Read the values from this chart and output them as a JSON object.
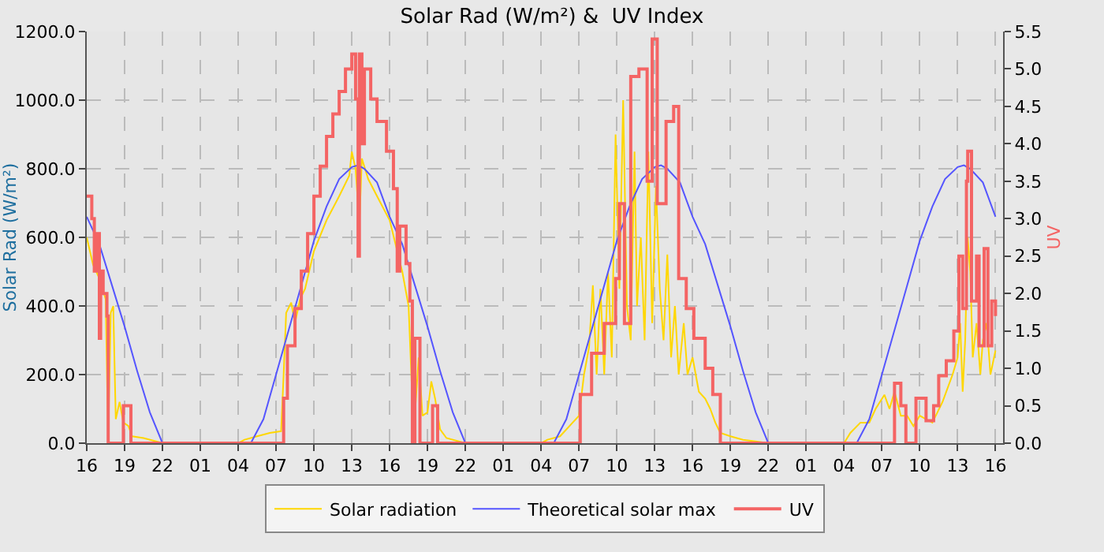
{
  "chart_data": {
    "type": "line",
    "title": "Solar Rad (W/m²) &  UV Index",
    "ylabel": "Solar Rad (W/m²)",
    "y2label": "UV",
    "grid": true,
    "legend": "bottom",
    "xlim": [
      "--01-01T16:00",
      "--01-04T16:36"
    ],
    "xticks": [
      {
        "value": "--01-01T16:00",
        "label": "16"
      },
      {
        "value": "--01-01T19:00",
        "label": "19"
      },
      {
        "value": "--01-01T22:00",
        "label": "22"
      },
      {
        "value": "--01-02T01:00",
        "label": "01"
      },
      {
        "value": "--01-02T04:00",
        "label": "04"
      },
      {
        "value": "--01-02T07:00",
        "label": "07"
      },
      {
        "value": "--01-02T10:00",
        "label": "10"
      },
      {
        "value": "--01-02T13:00",
        "label": "13"
      },
      {
        "value": "--01-02T16:00",
        "label": "16"
      },
      {
        "value": "--01-02T19:00",
        "label": "19"
      },
      {
        "value": "--01-02T22:00",
        "label": "22"
      },
      {
        "value": "--01-03T01:00",
        "label": "01"
      },
      {
        "value": "--01-03T04:00",
        "label": "04"
      },
      {
        "value": "--01-03T07:00",
        "label": "07"
      },
      {
        "value": "--01-03T10:00",
        "label": "10"
      },
      {
        "value": "--01-03T13:00",
        "label": "13"
      },
      {
        "value": "--01-03T16:00",
        "label": "16"
      },
      {
        "value": "--01-03T19:00",
        "label": "19"
      },
      {
        "value": "--01-03T22:00",
        "label": "22"
      },
      {
        "value": "--01-04T01:00",
        "label": "01"
      },
      {
        "value": "--01-04T04:00",
        "label": "04"
      },
      {
        "value": "--01-04T07:00",
        "label": "07"
      },
      {
        "value": "--01-04T10:00",
        "label": "10"
      },
      {
        "value": "--01-04T13:00",
        "label": "13"
      },
      {
        "value": "--01-04T16:00",
        "label": "16"
      }
    ],
    "ylim": [
      0,
      1200
    ],
    "yticks": [
      {
        "value": 0,
        "label": "0.0"
      },
      {
        "value": 200,
        "label": "200.0"
      },
      {
        "value": 400,
        "label": "400.0"
      },
      {
        "value": 600,
        "label": "600.0"
      },
      {
        "value": 800,
        "label": "800.0"
      },
      {
        "value": 1000,
        "label": "1000.0"
      },
      {
        "value": 1200,
        "label": "1200.0"
      }
    ],
    "y2lim": [
      0,
      5.5
    ],
    "y2ticks": [
      {
        "value": 0,
        "label": "0.0"
      },
      {
        "value": 0.5,
        "label": "0.5"
      },
      {
        "value": 1,
        "label": "1.0"
      },
      {
        "value": 1.5,
        "label": "1.5"
      },
      {
        "value": 2,
        "label": "2.0"
      },
      {
        "value": 2.5,
        "label": "2.5"
      },
      {
        "value": 3,
        "label": "3.0"
      },
      {
        "value": 3.5,
        "label": "3.5"
      },
      {
        "value": 4,
        "label": "4.0"
      },
      {
        "value": 4.5,
        "label": "4.5"
      },
      {
        "value": 5,
        "label": "5.0"
      },
      {
        "value": 5.5,
        "label": "5.5"
      }
    ],
    "series": [
      {
        "name": "Solar radiation",
        "color": "#ffd700",
        "x": [
          "--01-01T16:00",
          "--01-01T16:30",
          "--01-01T17:00",
          "--01-01T17:30",
          "--01-01T17:42",
          "--01-01T17:54",
          "--01-01T18:06",
          "--01-01T18:18",
          "--01-01T18:36",
          "--01-01T18:54",
          "--01-01T19:18",
          "--01-01T19:36",
          "--01-01T20:30",
          "--01-01T21:30",
          "--01-01T22:00",
          "--01-02T04:00",
          "--01-02T04:30",
          "--01-02T05:30",
          "--01-02T06:30",
          "--01-02T07:24",
          "--01-02T07:36",
          "--01-02T07:48",
          "--01-02T08:12",
          "--01-02T08:30",
          "--01-02T08:54",
          "--01-02T09:18",
          "--01-02T10:00",
          "--01-02T11:00",
          "--01-02T12:00",
          "--01-02T12:48",
          "--01-02T13:00",
          "--01-02T13:18",
          "--01-02T13:36",
          "--01-02T13:48",
          "--01-02T14:18",
          "--01-02T15:00",
          "--01-02T16:00",
          "--01-02T17:00",
          "--01-02T17:30",
          "--01-02T17:54",
          "--01-02T18:18",
          "--01-02T18:36",
          "--01-02T19:00",
          "--01-02T19:18",
          "--01-02T19:36",
          "--01-02T20:00",
          "--01-02T20:30",
          "--01-02T22:00",
          "--01-03T04:00",
          "--01-03T04:30",
          "--01-03T05:30",
          "--01-03T06:30",
          "--01-03T07:00",
          "--01-03T07:24",
          "--01-03T07:48",
          "--01-03T08:06",
          "--01-03T08:24",
          "--01-03T08:42",
          "--01-03T09:00",
          "--01-03T09:18",
          "--01-03T09:36",
          "--01-03T09:54",
          "--01-03T10:12",
          "--01-03T10:30",
          "--01-03T10:48",
          "--01-03T11:06",
          "--01-03T11:24",
          "--01-03T11:36",
          "--01-03T11:54",
          "--01-03T12:12",
          "--01-03T12:30",
          "--01-03T12:48",
          "--01-03T13:06",
          "--01-03T13:24",
          "--01-03T13:42",
          "--01-03T14:00",
          "--01-03T14:18",
          "--01-03T14:36",
          "--01-03T14:54",
          "--01-03T15:18",
          "--01-03T15:36",
          "--01-03T16:00",
          "--01-03T16:30",
          "--01-03T17:00",
          "--01-03T17:24",
          "--01-03T17:48",
          "--01-03T18:12",
          "--01-03T19:00",
          "--01-03T20:00",
          "--01-03T21:00",
          "--01-03T22:00",
          "--01-04T04:00",
          "--01-04T04:30",
          "--01-04T05:18",
          "--01-04T06:00",
          "--01-04T06:30",
          "--01-04T07:12",
          "--01-04T07:36",
          "--01-04T08:00",
          "--01-04T08:30",
          "--01-04T09:00",
          "--01-04T09:30",
          "--01-04T10:00",
          "--01-04T10:30",
          "--01-04T11:00",
          "--01-04T11:24",
          "--01-04T11:48",
          "--01-04T12:12",
          "--01-04T12:36",
          "--01-04T13:00",
          "--01-04T13:12",
          "--01-04T13:24",
          "--01-04T13:36",
          "--01-04T13:48",
          "--01-04T14:00",
          "--01-04T14:12",
          "--01-04T14:30",
          "--01-04T14:48",
          "--01-04T15:00",
          "--01-04T15:18",
          "--01-04T15:36",
          "--01-04T16:00"
        ],
        "values": [
          600,
          520,
          480,
          420,
          0,
          380,
          400,
          70,
          120,
          60,
          50,
          20,
          15,
          5,
          0,
          0,
          10,
          20,
          30,
          35,
          200,
          380,
          410,
          350,
          420,
          450,
          560,
          650,
          720,
          780,
          850,
          800,
          640,
          830,
          770,
          720,
          650,
          500,
          400,
          30,
          250,
          80,
          90,
          180,
          130,
          40,
          15,
          0,
          0,
          10,
          20,
          60,
          80,
          200,
          280,
          460,
          200,
          450,
          200,
          500,
          250,
          900,
          450,
          1000,
          400,
          300,
          850,
          400,
          600,
          300,
          850,
          350,
          750,
          450,
          300,
          550,
          250,
          400,
          200,
          350,
          200,
          250,
          150,
          130,
          100,
          60,
          30,
          20,
          10,
          5,
          0,
          0,
          30,
          60,
          60,
          100,
          141,
          100,
          150,
          80,
          80,
          50,
          80,
          70,
          60,
          90,
          120,
          160,
          200,
          250,
          350,
          150,
          300,
          600,
          500,
          250,
          350,
          200,
          300,
          350,
          200,
          270
        ]
      },
      {
        "name": "Theoretical solar max",
        "color": "#5555ff",
        "x": [
          "--01-01T16:00",
          "--01-01T17:00",
          "--01-01T18:00",
          "--01-01T19:00",
          "--01-01T20:00",
          "--01-01T21:00",
          "--01-01T22:00",
          "--01-02T05:00",
          "--01-02T06:00",
          "--01-02T07:00",
          "--01-02T08:00",
          "--01-02T09:00",
          "--01-02T10:00",
          "--01-02T11:00",
          "--01-02T12:00",
          "--01-02T13:00",
          "--01-02T13:30",
          "--01-02T14:00",
          "--01-02T15:00",
          "--01-02T16:00",
          "--01-02T17:00",
          "--01-02T18:00",
          "--01-02T19:00",
          "--01-02T20:00",
          "--01-02T21:00",
          "--01-02T22:00",
          "--01-03T05:00",
          "--01-03T06:00",
          "--01-03T07:00",
          "--01-03T08:00",
          "--01-03T09:00",
          "--01-03T10:00",
          "--01-03T11:00",
          "--01-03T12:00",
          "--01-03T13:00",
          "--01-03T13:30",
          "--01-03T14:00",
          "--01-03T15:00",
          "--01-03T16:00",
          "--01-03T17:00",
          "--01-03T18:00",
          "--01-03T19:00",
          "--01-03T20:00",
          "--01-03T21:00",
          "--01-03T22:00",
          "--01-04T05:00",
          "--01-04T06:00",
          "--01-04T07:00",
          "--01-04T08:00",
          "--01-04T09:00",
          "--01-04T10:00",
          "--01-04T11:00",
          "--01-04T12:00",
          "--01-04T13:00",
          "--01-04T13:30",
          "--01-04T14:00",
          "--01-04T15:00",
          "--01-04T16:00"
        ],
        "values": [
          660,
          580,
          460,
          340,
          210,
          90,
          0,
          0,
          70,
          200,
          330,
          460,
          590,
          690,
          770,
          805,
          810,
          800,
          760,
          660,
          580,
          460,
          340,
          210,
          90,
          0,
          0,
          70,
          200,
          330,
          460,
          590,
          690,
          770,
          805,
          810,
          800,
          760,
          660,
          580,
          460,
          340,
          210,
          90,
          0,
          0,
          70,
          200,
          330,
          460,
          590,
          690,
          770,
          805,
          810,
          800,
          760,
          660
        ]
      },
      {
        "name": "UV",
        "color": "#f46464",
        "type": "step",
        "axis": "y2",
        "x": [
          "--01-01T16:00",
          "--01-01T16:24",
          "--01-01T16:36",
          "--01-01T16:48",
          "--01-01T17:00",
          "--01-01T17:06",
          "--01-01T17:18",
          "--01-01T17:36",
          "--01-01T17:42",
          "--01-01T18:54",
          "--01-01T19:30",
          "--01-02T07:36",
          "--01-02T07:54",
          "--01-02T08:30",
          "--01-02T09:00",
          "--01-02T09:30",
          "--01-02T10:00",
          "--01-02T10:30",
          "--01-02T11:00",
          "--01-02T11:30",
          "--01-02T12:00",
          "--01-02T12:30",
          "--01-02T13:00",
          "--01-02T13:18",
          "--01-02T13:30",
          "--01-02T13:36",
          "--01-02T13:48",
          "--01-02T14:00",
          "--01-02T14:30",
          "--01-02T15:00",
          "--01-02T15:45",
          "--01-02T16:18",
          "--01-02T16:36",
          "--01-02T16:48",
          "--01-02T17:18",
          "--01-02T17:36",
          "--01-02T17:48",
          "--01-02T18:00",
          "--01-02T18:24",
          "--01-02T19:24",
          "--01-02T19:48",
          "--01-03T07:06",
          "--01-03T08:00",
          "--01-03T09:00",
          "--01-03T09:54",
          "--01-03T10:12",
          "--01-03T10:36",
          "--01-03T11:06",
          "--01-03T11:45",
          "--01-03T12:24",
          "--01-03T12:48",
          "--01-03T13:12",
          "--01-03T13:54",
          "--01-03T14:30",
          "--01-03T14:54",
          "--01-03T15:30",
          "--01-03T16:06",
          "--01-03T17:00",
          "--01-03T17:36",
          "--01-03T18:12",
          "--01-04T08:00",
          "--01-04T08:30",
          "--01-04T08:54",
          "--01-04T09:42",
          "--01-04T10:30",
          "--01-04T11:06",
          "--01-04T11:30",
          "--01-04T12:06",
          "--01-04T12:42",
          "--01-04T13:06",
          "--01-04T13:24",
          "--01-04T13:42",
          "--01-04T13:48",
          "--01-04T14:06",
          "--01-04T14:30",
          "--01-04T14:42",
          "--01-04T15:06",
          "--01-04T15:24",
          "--01-04T15:42",
          "--01-04T16:00"
        ],
        "values": [
          3.3,
          3,
          2.3,
          2.8,
          1.4,
          2.3,
          2,
          1.7,
          0,
          0.5,
          0,
          0.6,
          1.3,
          1.8,
          2.3,
          2.8,
          3.3,
          3.7,
          4.1,
          4.4,
          4.7,
          5,
          5.2,
          4.6,
          2.5,
          5.2,
          4,
          5,
          4.6,
          4.3,
          3.9,
          3.4,
          2.3,
          2.9,
          2.4,
          1.9,
          0,
          1.4,
          0,
          0.5,
          0,
          0.65,
          1.2,
          1.6,
          2.2,
          3.2,
          1.6,
          4.9,
          5,
          3.5,
          5.4,
          3.2,
          4.3,
          4.5,
          2.2,
          1.8,
          1.4,
          1,
          0.65,
          0,
          0.8,
          0.5,
          0,
          0.6,
          0.3,
          0.5,
          0.9,
          1.1,
          1.5,
          2.5,
          1.8,
          3.5,
          3.9,
          1.9,
          2.5,
          1.3,
          2.6,
          1.3,
          1.9,
          1.7
        ]
      }
    ]
  }
}
